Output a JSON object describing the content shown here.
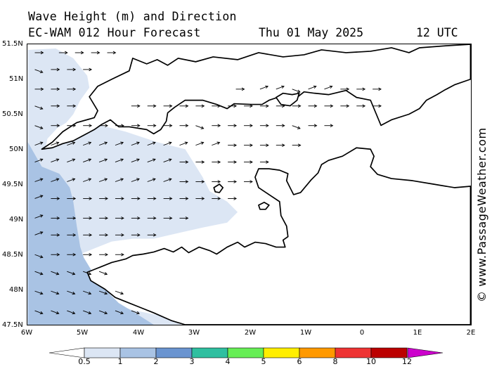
{
  "header": {
    "title": "Wave Height (m) and Direction",
    "subtitle": "EC-WAM 012 Hour Forecast",
    "date": "Thu 01 May 2025",
    "time": "12 UTC"
  },
  "axes": {
    "lat_labels": [
      "51.5N",
      "51N",
      "50.5N",
      "50N",
      "49.5N",
      "49N",
      "48.5N",
      "48N",
      "47.5N"
    ],
    "lon_labels": [
      "6W",
      "5W",
      "4W",
      "3W",
      "2W",
      "1W",
      "0",
      "1E",
      "2E"
    ]
  },
  "legend": {
    "labels": [
      "0.5",
      "1",
      "2",
      "3",
      "4",
      "5",
      "6",
      "8",
      "10",
      "12"
    ],
    "colors": [
      "#ffffff",
      "#dce6f4",
      "#a9c3e4",
      "#6a94d0",
      "#2fbfa0",
      "#66ee55",
      "#ffee00",
      "#ff9900",
      "#ee3333",
      "#bb0000",
      "#cc00cc"
    ]
  },
  "credit": "© www.PassageWeather.com",
  "map_colors": {
    "land": "#ffffff",
    "sea_lt05": "#ffffff",
    "band_05_1": "#dce6f4",
    "band_1_2": "#a9c3e4",
    "coast": "#000000",
    "arrow": "#000000"
  }
}
